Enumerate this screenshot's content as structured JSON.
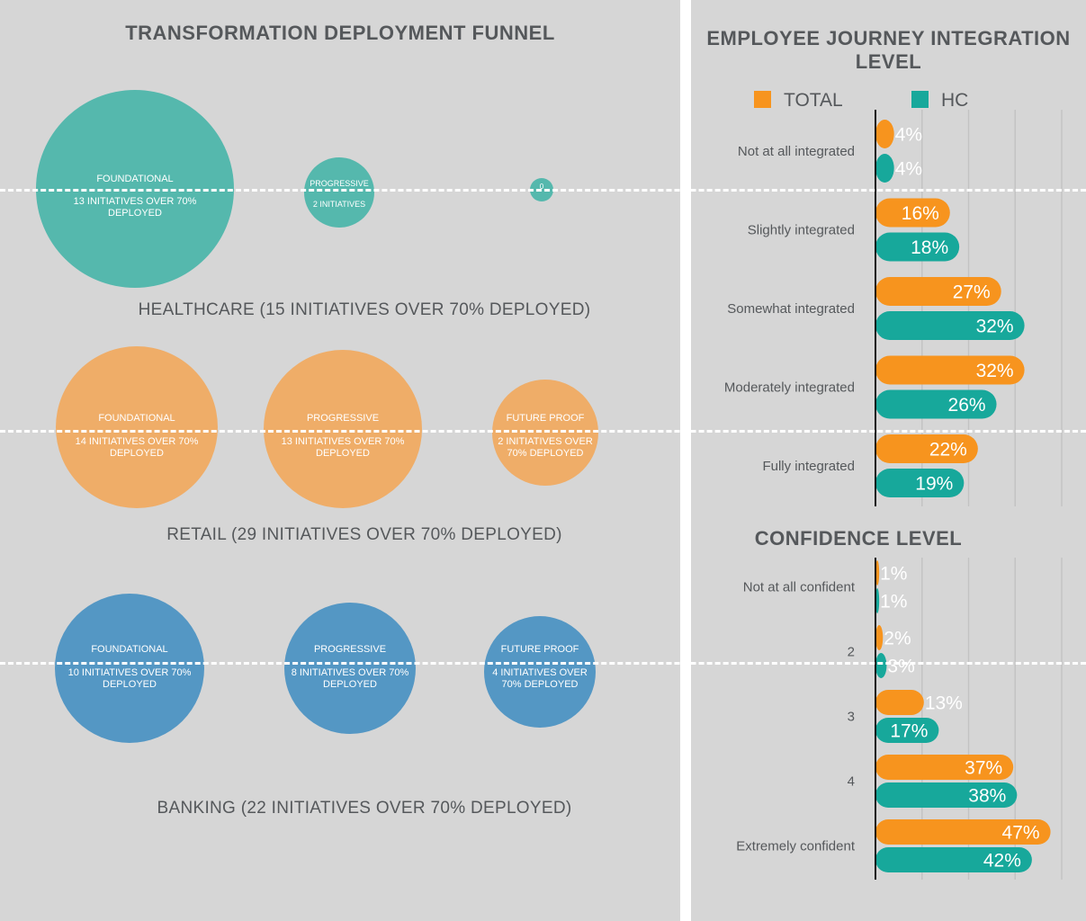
{
  "funnel": {
    "title": "TRANSFORMATION DEPLOYMENT FUNNEL",
    "sectors": [
      {
        "label": "HEALTHCARE (15 INITIATIVES OVER 70% DEPLOYED)",
        "color": "#55b8ad",
        "bubbles": [
          {
            "stage": "FOUNDATIONAL",
            "detail": "13 INITIATIVES OVER 70% DEPLOYED"
          },
          {
            "stage": "PROGRESSIVE",
            "detail": "2 INITIATIVES"
          },
          {
            "stage": "",
            "detail": "0"
          }
        ]
      },
      {
        "label": "RETAIL (29 INITIATIVES OVER 70% DEPLOYED)",
        "color": "#efad68",
        "bubbles": [
          {
            "stage": "FOUNDATIONAL",
            "detail": "14 INITIATIVES OVER 70% DEPLOYED"
          },
          {
            "stage": "PROGRESSIVE",
            "detail": "13 INITIATIVES OVER 70% DEPLOYED"
          },
          {
            "stage": "FUTURE PROOF",
            "detail": "2 INITIATIVES OVER 70% DEPLOYED"
          }
        ]
      },
      {
        "label": "BANKING (22 INITIATIVES OVER 70% DEPLOYED)",
        "color": "#5497c4",
        "bubbles": [
          {
            "stage": "FOUNDATIONAL",
            "detail": "10 INITIATIVES OVER 70% DEPLOYED"
          },
          {
            "stage": "PROGRESSIVE",
            "detail": "8 INITIATIVES OVER 70% DEPLOYED"
          },
          {
            "stage": "FUTURE PROOF",
            "detail": "4 INITIATIVES OVER 70% DEPLOYED"
          }
        ]
      }
    ]
  },
  "legend": {
    "total": "TOTAL",
    "hc": "HC"
  },
  "colors": {
    "total": "#f7941e",
    "hc": "#17a89b"
  },
  "chart_data": [
    {
      "type": "bar",
      "title": "EMPLOYEE JOURNEY INTEGRATION LEVEL",
      "categories": [
        "Not at all integrated",
        "Slightly integrated",
        "Somewhat integrated",
        "Moderately integrated",
        "Fully integrated"
      ],
      "series": [
        {
          "name": "TOTAL",
          "values": [
            4,
            16,
            27,
            32,
            22
          ]
        },
        {
          "name": "HC",
          "values": [
            4,
            18,
            32,
            26,
            19
          ]
        }
      ],
      "xlim": [
        0,
        40
      ],
      "grid": true
    },
    {
      "type": "bar",
      "title": "CONFIDENCE LEVEL",
      "categories": [
        "Not at all confident",
        "2",
        "3",
        "4",
        "Extremely confident"
      ],
      "series": [
        {
          "name": "TOTAL",
          "values": [
            1,
            2,
            13,
            37,
            47
          ]
        },
        {
          "name": "HC",
          "values": [
            1,
            3,
            17,
            38,
            42
          ]
        }
      ],
      "xlim": [
        0,
        50
      ],
      "grid": true
    }
  ]
}
